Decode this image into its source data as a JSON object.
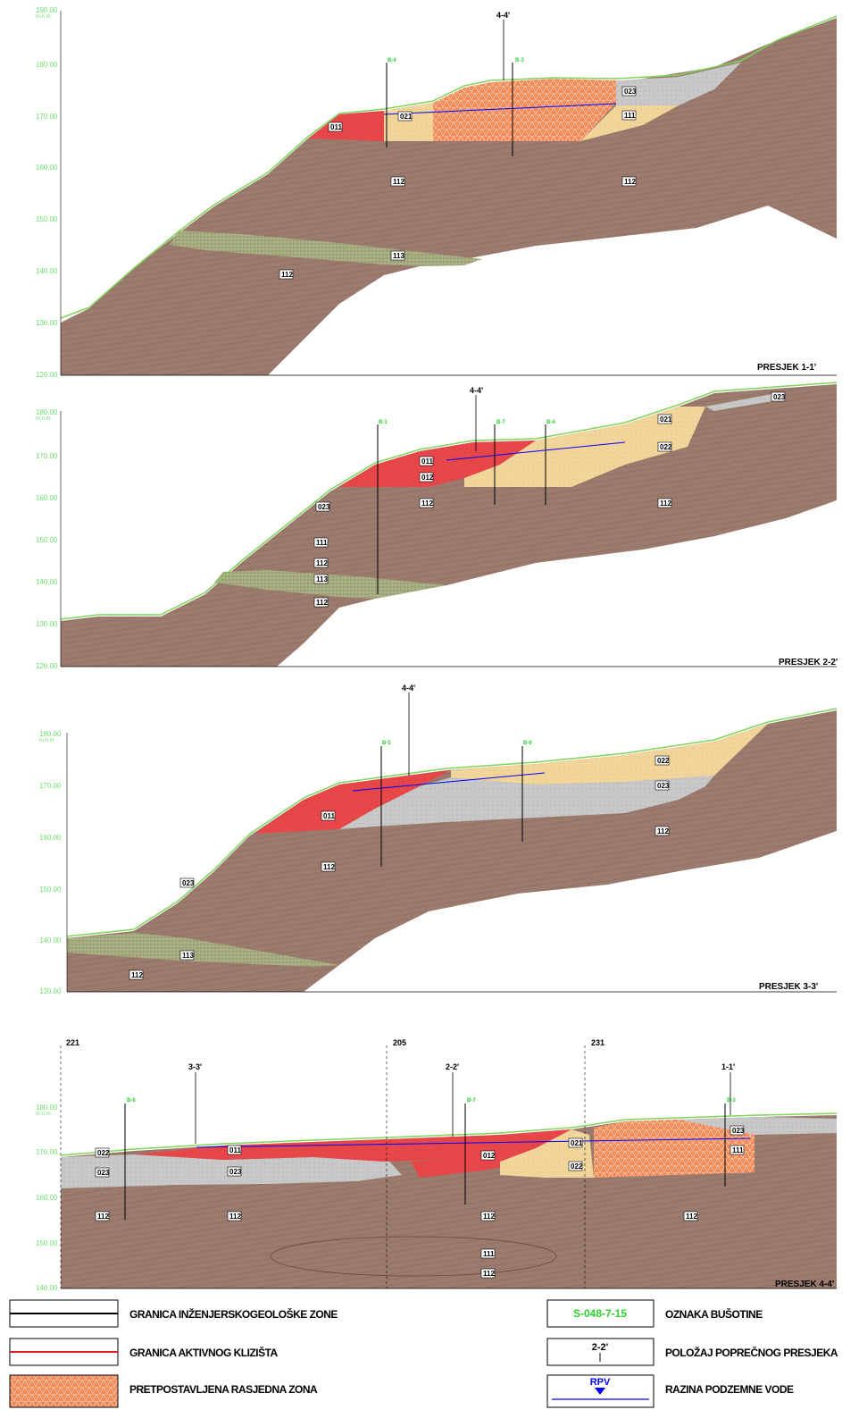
{
  "sections": [
    {
      "title": "PRESJEK 1-1'",
      "elevations": [
        "190.00",
        "180.00",
        "170.00",
        "160.00",
        "150.00",
        "140.00",
        "130.00",
        "120.00"
      ],
      "elev_unit": "m.n.m",
      "section_mark": "4-4'",
      "zones": [
        "011",
        "021",
        "023",
        "111",
        "112",
        "112",
        "112",
        "113",
        "112"
      ],
      "boreholes": [
        "B-4",
        "B-3"
      ]
    },
    {
      "title": "PRESJEK 2-2'",
      "elevations": [
        "180.00",
        "170.00",
        "160.00",
        "150.00",
        "140.00",
        "130.00",
        "120.00"
      ],
      "elev_unit": "m.n.m",
      "section_mark": "4-4'",
      "zones": [
        "011",
        "012",
        "021",
        "022",
        "023",
        "023",
        "112",
        "112",
        "111",
        "112",
        "113",
        "112"
      ],
      "boreholes": [
        "B-1",
        "B-7",
        "B-4"
      ]
    },
    {
      "title": "PRESJEK 3-3'",
      "elevations": [
        "180.00",
        "170.00",
        "160.00",
        "150.00",
        "140.00",
        "130.00"
      ],
      "elev_unit": "m.n.m",
      "section_mark": "4-4'",
      "zones": [
        "011",
        "022",
        "023",
        "023",
        "112",
        "112",
        "113",
        "112"
      ],
      "boreholes": [
        "B-5",
        "B-6"
      ]
    },
    {
      "title": "PRESJEK 4-4'",
      "elevations": [
        "180.00",
        "170.00",
        "160.00",
        "150.00",
        "140.00"
      ],
      "elev_unit": "m.n.m",
      "section_marks": [
        "3-3'",
        "2-2'",
        "1-1'"
      ],
      "stations": [
        "221",
        "205",
        "231"
      ],
      "zones": [
        "022",
        "023",
        "011",
        "023",
        "012",
        "021",
        "022",
        "023",
        "111",
        "112",
        "112",
        "112",
        "112",
        "111",
        "112"
      ],
      "boreholes": [
        "B-6",
        "B-7",
        "B-3"
      ]
    }
  ],
  "legend": {
    "left": [
      {
        "label": "GRANICA INŽENJERSKOGEOLOŠKE ZONE",
        "swatch": "black-line"
      },
      {
        "label": "GRANICA AKTIVNOG KLIZIŠTA",
        "swatch": "red-line"
      },
      {
        "label": "PRETPOSTAVLJENA RASJEDNA ZONA",
        "swatch": "orange-hatch"
      }
    ],
    "right": [
      {
        "label": "OZNAKA BUŠOTINE",
        "swatch_text": "S-048-7-15"
      },
      {
        "label": "POLOŽAJ POPREČNOG PRESJEKA",
        "swatch_text": "2-2'"
      },
      {
        "label": "RAZINA PODZEMNE VODE",
        "swatch_text": "RPV"
      }
    ]
  },
  "colors": {
    "brown": "#9b7b6e",
    "red": "#e8474a",
    "sand": "#f1d59a",
    "grey": "#c8c8c8",
    "green_band": "#a4aa7e",
    "orange_fault": "#f08a5a",
    "water": "#0000ff",
    "ground_line": "#7fd45a"
  }
}
